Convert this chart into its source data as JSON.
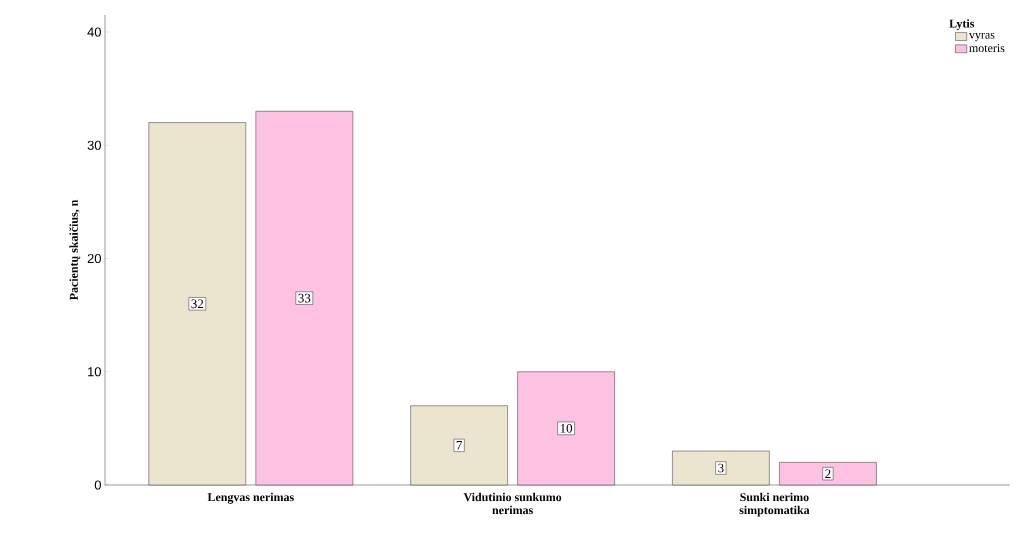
{
  "chart_data": {
    "type": "bar",
    "ylabel": "Pacientų skaičius, n",
    "legend_title": "Lytis",
    "categories": [
      "Lengvas nerimas",
      "Vidutinio sunkumo\nnerimas",
      "Sunki nerimo\nsimptomatika"
    ],
    "series": [
      {
        "name": "vyras",
        "color": "#ebe4cf",
        "values": [
          32,
          7,
          3
        ]
      },
      {
        "name": "moteris",
        "color": "#fdc1e1",
        "values": [
          33,
          10,
          2
        ]
      }
    ],
    "ylim": [
      0,
      41.5
    ],
    "yticks": [
      0,
      10,
      20,
      30,
      40
    ],
    "data_labels": true,
    "legend": "top right"
  }
}
